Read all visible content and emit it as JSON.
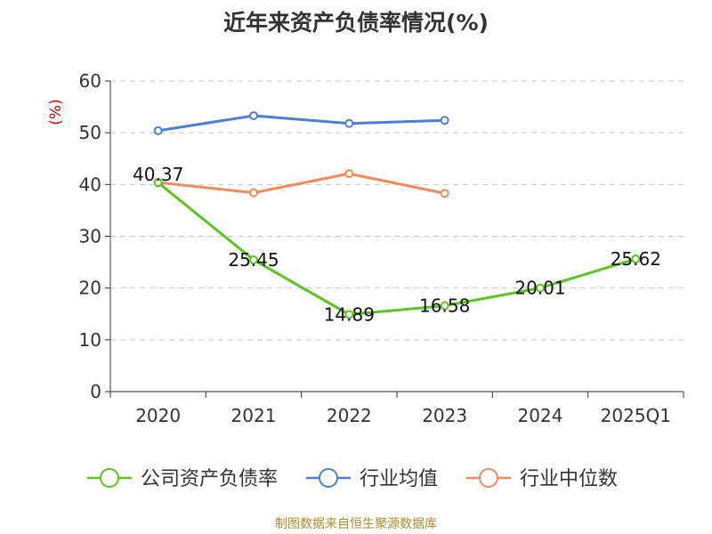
{
  "title": "近年来资产负债率情况(%)",
  "footer": "制图数据来自恒生聚源数据库",
  "chart_data": {
    "type": "line",
    "title": "近年来资产负债率情况(%)",
    "ylabel": "(%)",
    "xlabel": "",
    "ylim": [
      0,
      60
    ],
    "yticks": [
      0,
      10,
      20,
      30,
      40,
      50,
      60
    ],
    "categories": [
      "2020",
      "2021",
      "2022",
      "2023",
      "2024",
      "2025Q1"
    ],
    "grid": true,
    "legend_position": "bottom",
    "series": [
      {
        "name": "公司资产负债率",
        "color": "#5cc41e",
        "show_labels": true,
        "values": [
          40.37,
          25.45,
          14.89,
          16.58,
          20.01,
          25.62
        ]
      },
      {
        "name": "行业均值",
        "color": "#4e7fd8",
        "show_labels": false,
        "values": [
          50.4,
          53.3,
          51.8,
          52.4,
          null,
          null
        ]
      },
      {
        "name": "行业中位数",
        "color": "#f28b5a",
        "show_labels": false,
        "values": [
          40.4,
          38.4,
          42.1,
          38.3,
          null,
          null
        ]
      }
    ]
  }
}
